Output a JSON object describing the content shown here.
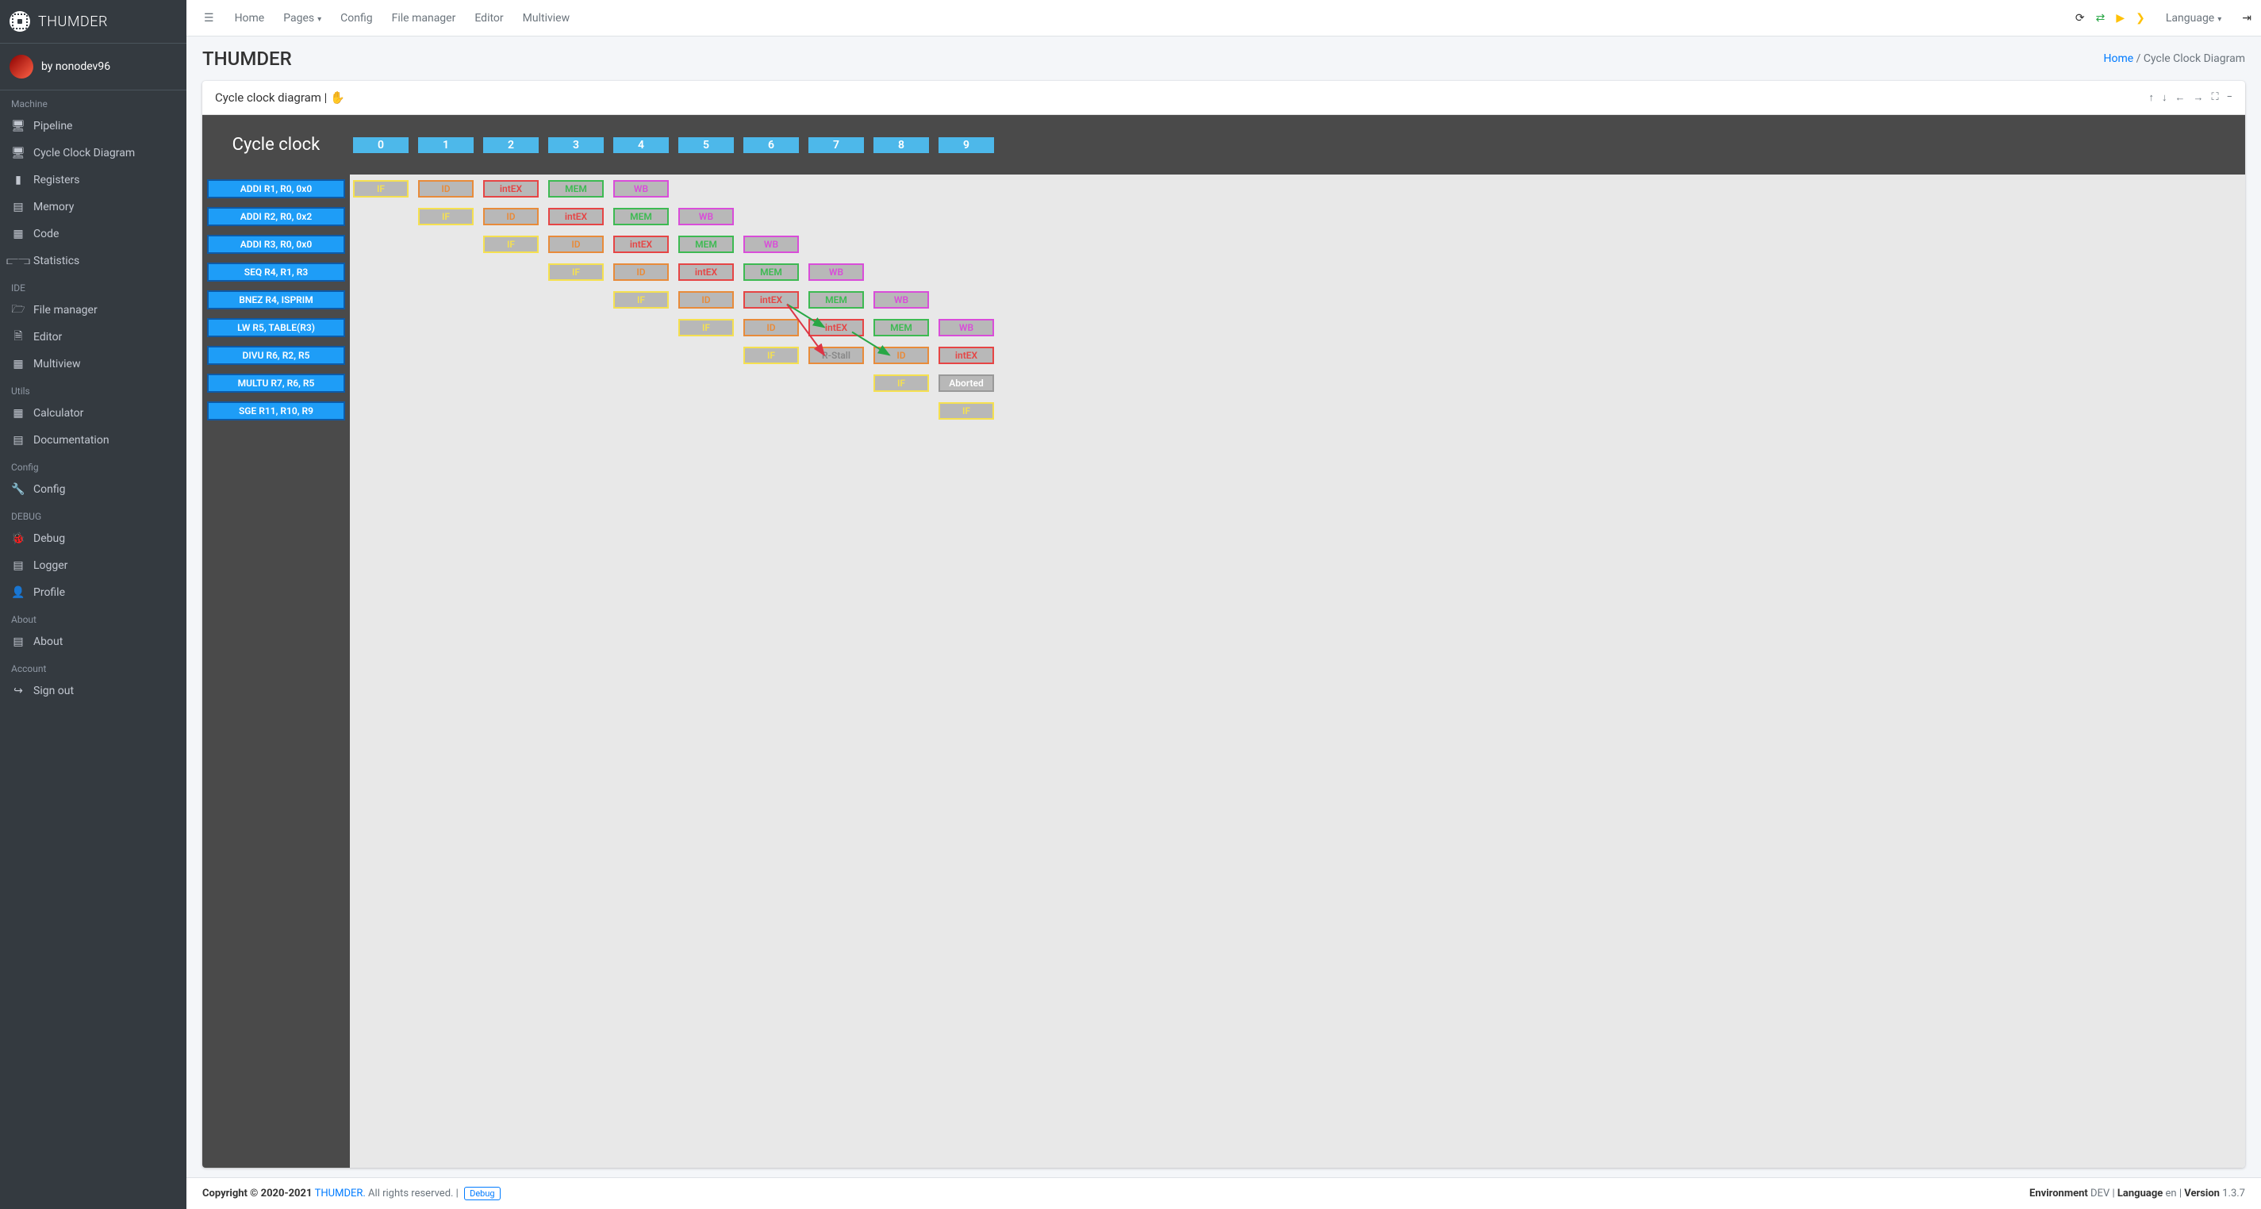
{
  "brand": "THUMDER",
  "user": "by nonodev96",
  "sidebar": {
    "sections": [
      {
        "header": "Machine",
        "items": [
          {
            "icon": "display",
            "label": "Pipeline"
          },
          {
            "icon": "display",
            "label": "Cycle Clock Diagram"
          },
          {
            "icon": "binary",
            "label": "Registers"
          },
          {
            "icon": "memory",
            "label": "Memory"
          },
          {
            "icon": "code",
            "label": "Code"
          },
          {
            "icon": "chart",
            "label": "Statistics"
          }
        ]
      },
      {
        "header": "IDE",
        "items": [
          {
            "icon": "folder",
            "label": "File manager"
          },
          {
            "icon": "file",
            "label": "Editor"
          },
          {
            "icon": "grid",
            "label": "Multiview"
          }
        ]
      },
      {
        "header": "Utils",
        "items": [
          {
            "icon": "calc",
            "label": "Calculator"
          },
          {
            "icon": "doc",
            "label": "Documentation"
          }
        ]
      },
      {
        "header": "Config",
        "items": [
          {
            "icon": "wrench",
            "label": "Config"
          }
        ]
      },
      {
        "header": "DEBUG",
        "items": [
          {
            "icon": "bug",
            "label": "Debug"
          },
          {
            "icon": "book",
            "label": "Logger"
          },
          {
            "icon": "user",
            "label": "Profile"
          }
        ]
      },
      {
        "header": "About",
        "items": [
          {
            "icon": "book",
            "label": "About"
          }
        ]
      },
      {
        "header": "Account",
        "items": [
          {
            "icon": "signout",
            "label": "Sign out"
          }
        ]
      }
    ]
  },
  "topnav": {
    "links": [
      "Home",
      "Pages",
      "Config",
      "File manager",
      "Editor",
      "Multiview"
    ],
    "language": "Language"
  },
  "header": {
    "title": "THUMDER",
    "breadcrumb_home": "Home",
    "breadcrumb_current": "Cycle Clock Diagram"
  },
  "card": {
    "title": "Cycle clock diagram | ✋"
  },
  "diagram": {
    "title": "Cycle clock",
    "cycles": [
      "0",
      "1",
      "2",
      "3",
      "4",
      "5",
      "6",
      "7",
      "8",
      "9"
    ],
    "cycle_bg": "#4db8ea",
    "instruction_bg": "#1e9df7",
    "instruction_border": "#0d5aa7",
    "sidebar_bg": "#4a4a4a",
    "content_bg": "#e8e8e8",
    "stage_colors": {
      "IF": {
        "border": "#f5e050",
        "text": "#f5e050"
      },
      "ID": {
        "border": "#e88b3a",
        "text": "#e88b3a"
      },
      "intEX": {
        "border": "#e64545",
        "text": "#e64545"
      },
      "MEM": {
        "border": "#3dba52",
        "text": "#3dba52"
      },
      "WB": {
        "border": "#d94dd9",
        "text": "#d94dd9"
      },
      "R-Stall": {
        "border": "#e88b3a",
        "text": "#888"
      },
      "Aborted": {
        "border": "#999",
        "text": "#fff"
      }
    },
    "instructions": [
      {
        "label": "ADDI R1, R0, 0x0",
        "start": 0,
        "stages": [
          "IF",
          "ID",
          "intEX",
          "MEM",
          "WB"
        ]
      },
      {
        "label": "ADDI R2, R0, 0x2",
        "start": 1,
        "stages": [
          "IF",
          "ID",
          "intEX",
          "MEM",
          "WB"
        ]
      },
      {
        "label": "ADDI R3, R0, 0x0",
        "start": 2,
        "stages": [
          "IF",
          "ID",
          "intEX",
          "MEM",
          "WB"
        ]
      },
      {
        "label": "SEQ R4, R1, R3",
        "start": 3,
        "stages": [
          "IF",
          "ID",
          "intEX",
          "MEM",
          "WB"
        ]
      },
      {
        "label": "BNEZ R4, ISPRIM",
        "start": 4,
        "stages": [
          "IF",
          "ID",
          "intEX",
          "MEM",
          "WB"
        ]
      },
      {
        "label": "LW R5, TABLE(R3)",
        "start": 5,
        "stages": [
          "IF",
          "ID",
          "intEX",
          "MEM",
          "WB"
        ]
      },
      {
        "label": "DIVU R6, R2, R5",
        "start": 6,
        "stages": [
          "IF",
          "R-Stall",
          "ID",
          "intEX"
        ]
      },
      {
        "label": "MULTU R7, R6, R5",
        "start": 7,
        "stages": [
          "",
          "IF",
          "Aborted"
        ]
      },
      {
        "label": "SGE R11, R10, R9",
        "start": 8,
        "stages": [
          "",
          "IF"
        ]
      }
    ],
    "arrows": [
      {
        "from_row": 4,
        "from_col": 6,
        "to_row": 5,
        "to_col": 7,
        "color": "#28a745"
      },
      {
        "from_row": 4,
        "from_col": 6,
        "to_row": 6,
        "to_col": 7,
        "color": "#dc3545"
      },
      {
        "from_row": 5,
        "from_col": 7,
        "to_row": 6,
        "to_col": 8,
        "color": "#28a745"
      }
    ]
  },
  "footer": {
    "copyright": "Copyright © 2020-2021 ",
    "brand": "THUMDER.",
    "rights": " All rights reserved. | ",
    "debug": "Debug",
    "env_label": "Environment ",
    "env_value": "DEV",
    "lang_label": "Language ",
    "lang_value": "en",
    "ver_label": "Version ",
    "ver_value": "1.3.7"
  }
}
